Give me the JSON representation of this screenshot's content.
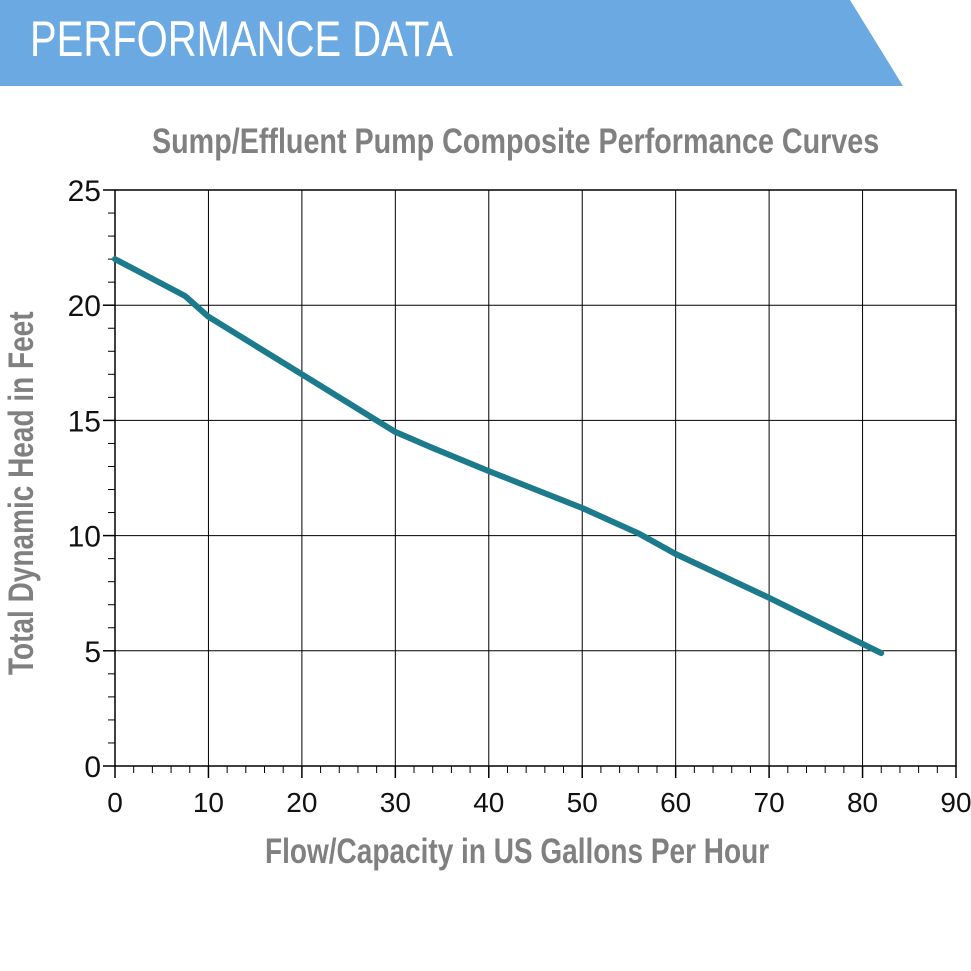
{
  "banner": {
    "title": "PERFORMANCE DATA",
    "color": "#6aa9e2"
  },
  "chart_data": {
    "type": "line",
    "title": "Sump/Effluent Pump Composite Performance Curves",
    "xlabel": "Flow/Capacity in US Gallons Per Hour",
    "ylabel": "Total Dynamic Head in Feet",
    "xlim": [
      0,
      90
    ],
    "ylim": [
      0,
      25
    ],
    "x_ticks": [
      0,
      10,
      20,
      30,
      40,
      50,
      60,
      70,
      80,
      90
    ],
    "y_ticks": [
      0,
      5,
      10,
      15,
      20,
      25
    ],
    "grid": true,
    "series": [
      {
        "color": "#1b7a8c",
        "x": [
          0,
          7.5,
          10,
          20,
          28,
          30,
          34,
          40,
          50,
          56,
          60,
          70,
          82
        ],
        "y": [
          22.0,
          20.4,
          19.5,
          17.0,
          15.0,
          14.5,
          13.8,
          12.8,
          11.2,
          10.1,
          9.2,
          7.3,
          4.9
        ]
      }
    ]
  }
}
